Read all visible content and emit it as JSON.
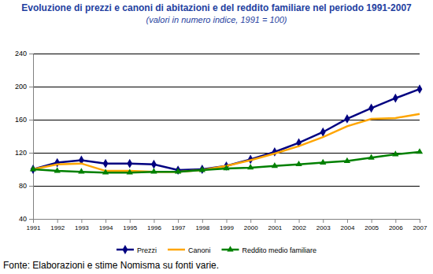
{
  "chart_data": {
    "type": "line",
    "title": "Evoluzione di prezzi e canoni di abitazioni e del reddito familiare nel periodo 1991-2007",
    "subtitle": "(valori in numero indice, 1991 = 100)",
    "source": "Fonte: Elaborazioni e stime Nomisma su fonti varie.",
    "categories": [
      "1991",
      "1992",
      "1993",
      "1994",
      "1995",
      "1996",
      "1997",
      "1998",
      "1999",
      "2000",
      "2001",
      "2002",
      "2003",
      "2004",
      "2005",
      "2006",
      "2007"
    ],
    "series": [
      {
        "name": "Prezzi",
        "color": "#000080",
        "marker": "diamond",
        "line_style": "solid",
        "values": [
          100,
          108,
          111,
          107,
          107,
          106,
          99,
          100,
          104,
          112,
          121,
          132,
          145,
          161,
          174,
          186,
          197
        ]
      },
      {
        "name": "Canoni",
        "color": "#ffa500",
        "marker": "none",
        "line_style": "solid",
        "values": [
          100,
          106,
          107,
          98,
          98,
          97,
          97,
          99,
          104,
          111,
          119,
          128,
          139,
          152,
          161,
          162,
          167
        ]
      },
      {
        "name": "Reddito medio familiare",
        "color": "#008000",
        "marker": "triangle",
        "line_style": "solid",
        "values": [
          100,
          98,
          97,
          96,
          96,
          97,
          97,
          99,
          101,
          102,
          104,
          106,
          108,
          110,
          114,
          118,
          121
        ]
      }
    ],
    "ylim": [
      40,
      240
    ],
    "yticks": [
      40,
      80,
      120,
      160,
      200,
      240
    ],
    "grid": true,
    "legend": "bottom"
  }
}
